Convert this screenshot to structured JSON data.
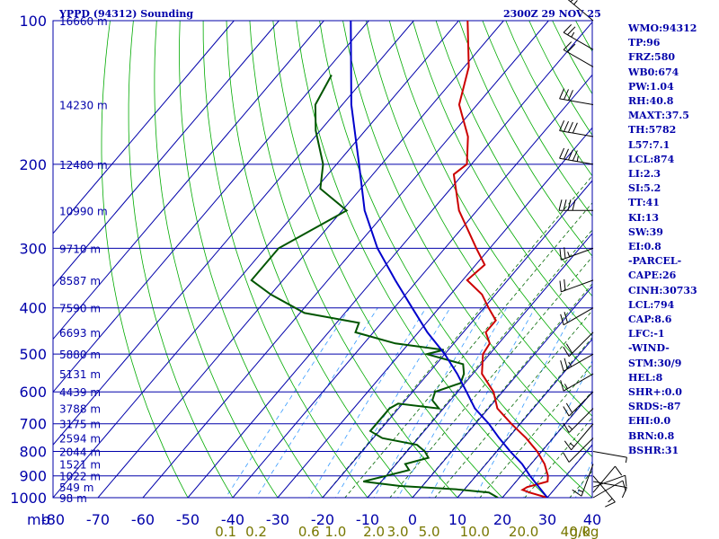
{
  "header": {
    "title": "YPPD (94312) Sounding",
    "datetime": "2300Z 29 NOV 25"
  },
  "stats": [
    "WMO:94312",
    "TP:96",
    "FRZ:580",
    "WB0:674",
    "PW:1.04",
    "RH:40.8",
    "MAXT:37.5",
    "TH:5782",
    "L57:7.1",
    "LCL:874",
    "LI:2.3",
    "SI:5.2",
    "TT:41",
    "KI:13",
    "SW:39",
    "EI:0.8",
    "-PARCEL-",
    "CAPE:26",
    "CINH:30733",
    "LCL:794",
    "CAP:8.6",
    "LFC:-1",
    "-WIND-",
    "STM:30/9",
    "HEL:8",
    "SHR+:0.0",
    "SRDS:-87",
    "EHI:0.0",
    "BRN:0.8",
    "BSHR:31"
  ],
  "colors": {
    "temperature": "#cc0000",
    "dewpoint": "#005500",
    "parcel": "#0000cc",
    "isobar": "#0000aa",
    "isotherm": "#0000aa",
    "dry_adiabat": "#00aa00",
    "moist_adiabat": "#006600",
    "mixing_ratio": "#3399ff",
    "text": "#0000aa",
    "mixing_label": "#777700"
  },
  "chart_data": {
    "type": "line",
    "title": "YPPD (94312) Sounding",
    "subtitle": "2300Z 29 NOV 25",
    "xlabel": "",
    "ylabel": "mb",
    "y_scale": "log",
    "ylim": [
      1000,
      100
    ],
    "xlim": [
      -80,
      40
    ],
    "y_ticks": [
      100,
      200,
      300,
      400,
      500,
      600,
      700,
      800,
      900,
      1000
    ],
    "x_ticks": [
      -80,
      -70,
      -60,
      -50,
      -40,
      -30,
      -20,
      -10,
      0,
      10,
      20,
      30,
      40
    ],
    "x_tick_labels": [
      "-80",
      "-70",
      "-60",
      "-50",
      "-40",
      "-30",
      "-20",
      "-10",
      "0",
      "10",
      "20",
      "30",
      "40"
    ],
    "y_axis_unit_label": "mb",
    "mixing_ratio_labels": [
      "0.1",
      "0.2",
      "0.6",
      "1.0",
      "2.0",
      "3.0",
      "5.0",
      "10.0",
      "20.0",
      "40.0",
      "g/kg"
    ],
    "mixing_ratio_values": [
      0.1,
      0.2,
      0.6,
      1.0,
      2.0,
      3.0,
      5.0,
      10.0,
      20.0,
      40.0
    ],
    "height_labels": [
      {
        "p": 100,
        "label": "16660 m"
      },
      {
        "p": 150,
        "label": "14230 m"
      },
      {
        "p": 200,
        "label": "12480 m"
      },
      {
        "p": 250,
        "label": "10990 m"
      },
      {
        "p": 300,
        "label": "9710 m"
      },
      {
        "p": 350,
        "label": "8587 m"
      },
      {
        "p": 400,
        "label": "7590 m"
      },
      {
        "p": 450,
        "label": "6693 m"
      },
      {
        "p": 500,
        "label": "5880 m"
      },
      {
        "p": 550,
        "label": "5131 m"
      },
      {
        "p": 600,
        "label": "4439 m"
      },
      {
        "p": 650,
        "label": "3788 m"
      },
      {
        "p": 700,
        "label": "3175 m"
      },
      {
        "p": 750,
        "label": "2594 m"
      },
      {
        "p": 800,
        "label": "2044 m"
      },
      {
        "p": 850,
        "label": "1521 m"
      },
      {
        "p": 900,
        "label": "1022 m"
      },
      {
        "p": 950,
        "label": "549 m"
      },
      {
        "p": 1000,
        "label": "98 m"
      }
    ],
    "series": [
      {
        "key": "temperature",
        "points": [
          [
            1000,
            30
          ],
          [
            975,
            25
          ],
          [
            963,
            23
          ],
          [
            950,
            23.5
          ],
          [
            925,
            27
          ],
          [
            900,
            26
          ],
          [
            850,
            23
          ],
          [
            800,
            19
          ],
          [
            750,
            14
          ],
          [
            700,
            8
          ],
          [
            650,
            2
          ],
          [
            600,
            -2
          ],
          [
            550,
            -8
          ],
          [
            500,
            -11.5
          ],
          [
            475,
            -12
          ],
          [
            450,
            -15
          ],
          [
            425,
            -15
          ],
          [
            400,
            -19
          ],
          [
            375,
            -23
          ],
          [
            350,
            -29
          ],
          [
            325,
            -28
          ],
          [
            300,
            -33
          ],
          [
            250,
            -44
          ],
          [
            210,
            -52
          ],
          [
            200,
            -51
          ],
          [
            175,
            -56
          ],
          [
            150,
            -64
          ],
          [
            125,
            -69
          ],
          [
            100,
            -78
          ]
        ]
      },
      {
        "key": "dewpoint",
        "points": [
          [
            1000,
            19
          ],
          [
            975,
            16
          ],
          [
            960,
            8
          ],
          [
            945,
            -5
          ],
          [
            925,
            -14
          ],
          [
            900,
            -10
          ],
          [
            875,
            -6
          ],
          [
            850,
            -8
          ],
          [
            825,
            -4
          ],
          [
            800,
            -6
          ],
          [
            775,
            -9
          ],
          [
            750,
            -18
          ],
          [
            725,
            -22
          ],
          [
            700,
            -22
          ],
          [
            650,
            -22
          ],
          [
            635,
            -21
          ],
          [
            650,
            -11
          ],
          [
            625,
            -14
          ],
          [
            600,
            -15
          ],
          [
            575,
            -11
          ],
          [
            550,
            -12
          ],
          [
            525,
            -14
          ],
          [
            500,
            -24
          ],
          [
            490,
            -21
          ],
          [
            475,
            -33
          ],
          [
            450,
            -44
          ],
          [
            430,
            -45
          ],
          [
            410,
            -59
          ],
          [
            375,
            -70
          ],
          [
            350,
            -77
          ],
          [
            300,
            -77
          ],
          [
            250,
            -69
          ],
          [
            225,
            -79
          ],
          [
            200,
            -83
          ],
          [
            170,
            -91
          ],
          [
            150,
            -96
          ],
          [
            130,
            -98
          ]
        ]
      },
      {
        "key": "parcel",
        "points": [
          [
            1000,
            30
          ],
          [
            900,
            22
          ],
          [
            850,
            18
          ],
          [
            800,
            13
          ],
          [
            750,
            8
          ],
          [
            700,
            3
          ],
          [
            650,
            -3
          ],
          [
            600,
            -8
          ],
          [
            550,
            -13.5
          ],
          [
            500,
            -20
          ],
          [
            450,
            -28
          ],
          [
            400,
            -36
          ],
          [
            350,
            -45
          ],
          [
            300,
            -55
          ],
          [
            250,
            -65
          ],
          [
            200,
            -75
          ],
          [
            150,
            -88
          ],
          [
            100,
            -104
          ]
        ]
      }
    ],
    "wind_barbs": [
      {
        "p": 1000,
        "dir": 60,
        "speed": 10
      },
      {
        "p": 975,
        "dir": 40,
        "speed": 10
      },
      {
        "p": 950,
        "dir": 70,
        "speed": 10
      },
      {
        "p": 925,
        "dir": 100,
        "speed": 10
      },
      {
        "p": 900,
        "dir": 140,
        "speed": 15
      },
      {
        "p": 850,
        "dir": 200,
        "speed": 15
      },
      {
        "p": 800,
        "dir": 100,
        "speed": 5
      },
      {
        "p": 750,
        "dir": 225,
        "speed": 10
      },
      {
        "p": 700,
        "dir": 220,
        "speed": 15
      },
      {
        "p": 650,
        "dir": 225,
        "speed": 15
      },
      {
        "p": 600,
        "dir": 225,
        "speed": 20
      },
      {
        "p": 550,
        "dir": 240,
        "speed": 15
      },
      {
        "p": 500,
        "dir": 240,
        "speed": 25
      },
      {
        "p": 450,
        "dir": 225,
        "speed": 20
      },
      {
        "p": 400,
        "dir": 240,
        "speed": 20
      },
      {
        "p": 350,
        "dir": 250,
        "speed": 20
      },
      {
        "p": 300,
        "dir": 250,
        "speed": 25
      },
      {
        "p": 250,
        "dir": 270,
        "speed": 40
      },
      {
        "p": 200,
        "dir": 280,
        "speed": 45
      },
      {
        "p": 175,
        "dir": 280,
        "speed": 40
      },
      {
        "p": 150,
        "dir": 280,
        "speed": 30
      },
      {
        "p": 125,
        "dir": 300,
        "speed": 20
      },
      {
        "p": 115,
        "dir": 300,
        "speed": 25
      },
      {
        "p": 100,
        "dir": 310,
        "speed": 25
      }
    ]
  }
}
